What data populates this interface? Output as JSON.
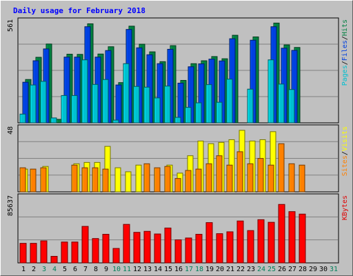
{
  "chart_data": {
    "type": "bar",
    "title": "Daily usage for February 2018",
    "x_ticks": [
      "1",
      "2",
      "3",
      "4",
      "5",
      "6",
      "7",
      "8",
      "9",
      "10",
      "11",
      "12",
      "13",
      "14",
      "15",
      "16",
      "17",
      "18",
      "19",
      "20",
      "21",
      "22",
      "23",
      "24",
      "25",
      "26",
      "27",
      "28",
      "29",
      "30",
      "31"
    ],
    "weekend_days": [
      3,
      4,
      10,
      11,
      17,
      18,
      24,
      25,
      31
    ],
    "grid": true,
    "panels": [
      {
        "name": "hits_files_pages",
        "y_max_label": "561",
        "ylim": [
          0,
          561
        ],
        "legend": [
          "Pages",
          "/",
          "Files",
          "/",
          "Hits"
        ],
        "legend_colors": [
          "#00c0d0",
          "#000000",
          "#0040e0",
          "#000000",
          "#008040"
        ],
        "series": [
          {
            "name": "Hits",
            "color": "#008040",
            "values": [
              238,
              360,
              433,
              19,
              377,
              376,
              544,
              378,
              418,
              221,
              531,
              432,
              390,
              336,
              424,
              233,
              325,
              341,
              364,
              352,
              481,
              0,
              472,
              0,
              548,
              428,
              414,
              0
            ]
          },
          {
            "name": "Files",
            "color": "#0040e0",
            "values": [
              223,
              341,
              406,
              0,
              361,
              361,
              528,
              361,
              397,
              208,
              513,
              412,
              374,
              325,
              404,
              218,
              308,
              324,
              350,
              340,
              462,
              0,
              454,
              0,
              528,
              410,
              398,
              0
            ]
          },
          {
            "name": "Pages",
            "color": "#00c0d0",
            "values": [
              48,
              208,
              228,
              27,
              150,
              150,
              346,
              211,
              238,
              15,
              325,
              200,
              196,
              137,
              202,
              30,
              85,
              110,
              210,
              113,
              240,
              0,
              185,
              0,
              346,
              213,
              183,
              0
            ]
          }
        ]
      },
      {
        "name": "visits_sites",
        "y_max_label": "48",
        "ylim": [
          0,
          48
        ],
        "legend": [
          "Sites",
          "/",
          "Visits"
        ],
        "legend_colors": [
          "#ff8000",
          "#000000",
          "#ffff00"
        ],
        "series": [
          {
            "name": "Visits",
            "color": "#ffff00",
            "values": [
              17,
              0,
              19,
              0,
              0,
              21,
              22,
              22,
              34,
              18,
              15,
              20,
              0,
              0,
              20,
              14,
              27,
              38,
              36,
              37,
              39,
              46,
              38,
              39,
              45,
              0,
              0,
              0
            ]
          },
          {
            "name": "Sites",
            "color": "#ff8000",
            "values": [
              18,
              17,
              18,
              0,
              0,
              20,
              18,
              18,
              17,
              0,
              0,
              0,
              21,
              18,
              19,
              10,
              16,
              17,
              21,
              27,
              20,
              30,
              21,
              25,
              20,
              36,
              21,
              20
            ]
          }
        ]
      },
      {
        "name": "kbytes",
        "y_max_label": "85637",
        "ylim": [
          0,
          85637
        ],
        "legend": [
          "KBytes"
        ],
        "legend_colors": [
          "#e00000"
        ],
        "series": [
          {
            "name": "KBytes",
            "color": "#ff0000",
            "values": [
              25300,
              25300,
              28500,
              8500,
              27000,
              27000,
              47200,
              31500,
              37000,
              18700,
              49800,
              39500,
              40800,
              37400,
              45100,
              29800,
              32200,
              37000,
              52100,
              37800,
              40200,
              54200,
              41800,
              55900,
              52500,
              75600,
              66300,
              63100
            ]
          }
        ]
      }
    ]
  }
}
